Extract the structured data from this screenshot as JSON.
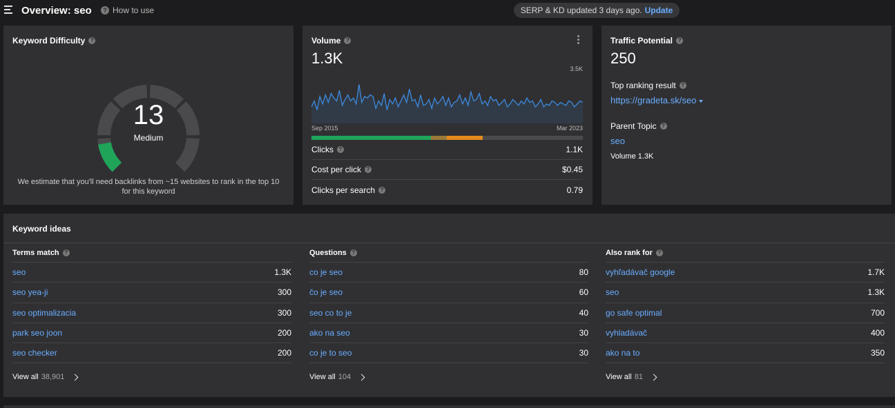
{
  "header": {
    "title": "Overview: seo",
    "how_to_use": "How to use",
    "update_notice": "SERP & KD updated 3 days ago.",
    "update_link": "Update"
  },
  "kd_card": {
    "title": "Keyword Difficulty",
    "score": "13",
    "score_fraction": 0.13,
    "level": "Medium",
    "note": "We estimate that you'll need backlinks from ~15 websites to rank in the top 10 for this keyword",
    "colors": {
      "filled": "#1fa45a",
      "empty": "#4a4a4d"
    }
  },
  "volume_card": {
    "title": "Volume",
    "value": "1.3K",
    "chart_max_label": "3.5K",
    "start_label": "Sep 2015",
    "end_label": "Mar 2023",
    "line_color": "#3d8be0",
    "intent_segments": [
      {
        "share": 0.44,
        "color": "#1fa45a"
      },
      {
        "share": 0.06,
        "color": "#9a7a3a"
      },
      {
        "share": 0.13,
        "color": "#e38a1e"
      },
      {
        "share": 0.37,
        "color": "#4a4a4d"
      }
    ],
    "metrics": [
      {
        "label": "Clicks",
        "value": "1.1K"
      },
      {
        "label": "Cost per click",
        "value": "$0.45"
      },
      {
        "label": "Clicks per search",
        "value": "0.79"
      }
    ]
  },
  "chart_data": {
    "type": "line",
    "title": "",
    "xlabel": "",
    "ylabel": "",
    "x_start": "Sep 2015",
    "x_end": "Mar 2023",
    "ylim": [
      0,
      3500
    ],
    "series": [
      {
        "values": [
          1100,
          1500,
          900,
          1800,
          1300,
          1900,
          1400,
          2000,
          1700,
          1500,
          2200,
          1200,
          1600,
          1900,
          1500,
          1700,
          1300,
          2600,
          1400,
          1800,
          1700,
          1900,
          1800,
          1000,
          1500,
          1200,
          2000,
          900,
          1600,
          1300,
          1700,
          1100,
          1500,
          1900,
          1400,
          2300,
          1500,
          1600,
          1100,
          1900,
          1200,
          1300,
          1600,
          1000,
          1700,
          1300,
          1500,
          1800,
          1200,
          1700,
          1100,
          1400,
          1500,
          1900,
          1300,
          1700,
          1200,
          2100,
          1500,
          1600,
          2000,
          1300,
          1500,
          1200,
          1800,
          1500,
          1600,
          1200,
          1400,
          1600,
          1100,
          1300,
          1600,
          1400,
          1200,
          1500,
          1300,
          1700,
          1400,
          1500,
          1100,
          1300,
          1600,
          1100,
          1300,
          1200,
          1500,
          1400,
          1200,
          1400,
          1300,
          1200,
          1500,
          1400,
          1100,
          1300,
          1500,
          1400
        ]
      }
    ]
  },
  "tp_card": {
    "title": "Traffic Potential",
    "value": "250",
    "top_result_label": "Top ranking result",
    "top_result_url": "https://gradeta.sk/seo",
    "parent_topic_label": "Parent Topic",
    "parent_topic": "seo",
    "parent_volume": "Volume 1.3K"
  },
  "ideas": {
    "title": "Keyword ideas",
    "view_all_label": "View all",
    "columns": [
      {
        "title": "Terms match",
        "rows": [
          {
            "term": "seo",
            "value": "1.3K"
          },
          {
            "term": "seo yea-ji",
            "value": "300"
          },
          {
            "term": "seo optimalizacia",
            "value": "300"
          },
          {
            "term": "park seo joon",
            "value": "200"
          },
          {
            "term": "seo checker",
            "value": "200"
          }
        ],
        "total": "38,901"
      },
      {
        "title": "Questions",
        "rows": [
          {
            "term": "co je seo",
            "value": "80"
          },
          {
            "term": "čo je seo",
            "value": "60"
          },
          {
            "term": "seo co to je",
            "value": "40"
          },
          {
            "term": "ako na seo",
            "value": "30"
          },
          {
            "term": "co je to seo",
            "value": "30"
          }
        ],
        "total": "104"
      },
      {
        "title": "Also rank for",
        "rows": [
          {
            "term": "vyhľadávač google",
            "value": "1.7K"
          },
          {
            "term": "seo",
            "value": "1.3K"
          },
          {
            "term": "go safe optimal",
            "value": "700"
          },
          {
            "term": "vyhladávač",
            "value": "400"
          },
          {
            "term": "ako na to",
            "value": "350"
          }
        ],
        "total": "81"
      }
    ]
  }
}
